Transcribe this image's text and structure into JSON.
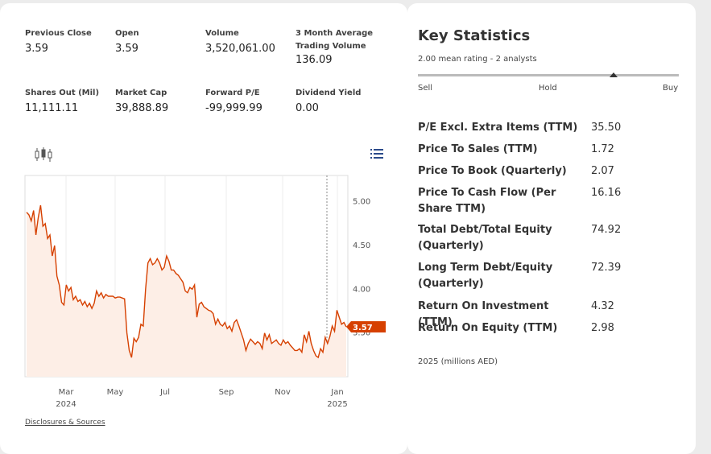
{
  "stats": [
    {
      "label": "Previous Close",
      "value": "3.59"
    },
    {
      "label": "Open",
      "value": "3.59"
    },
    {
      "label": "Volume",
      "value": "3,520,061.00"
    },
    {
      "label": "3 Month Average Trading Volume",
      "value": "136.09"
    },
    {
      "label": "Shares Out (Mil)",
      "value": "11,111.11"
    },
    {
      "label": "Market Cap",
      "value": "39,888.89"
    },
    {
      "label": "Forward P/E",
      "value": "-99,999.99"
    },
    {
      "label": "Dividend Yield",
      "value": "0.00"
    }
  ],
  "chart": {
    "last_price": "3.57",
    "y_ticks": [
      "5.00",
      "4.50",
      "4.00",
      "3.50"
    ],
    "x_ticks": [
      {
        "label": "Mar",
        "sub": "2024"
      },
      {
        "label": "May",
        "sub": ""
      },
      {
        "label": "Jul",
        "sub": ""
      },
      {
        "label": "Sep",
        "sub": ""
      },
      {
        "label": "Nov",
        "sub": ""
      },
      {
        "label": "Jan",
        "sub": "2025"
      }
    ],
    "line_color": "#d64000",
    "fill_color": "#fdeee6"
  },
  "chart_data": {
    "type": "area",
    "ylim": [
      3.0,
      5.3
    ],
    "y_ticks": [
      5.0,
      4.5,
      4.0,
      3.5
    ],
    "x_ticks": [
      "Mar 2024",
      "May",
      "Jul",
      "Sep",
      "Nov",
      "Jan 2025"
    ],
    "series": [
      {
        "values": [
          4.88,
          4.85,
          4.78,
          4.9,
          4.62,
          4.82,
          4.96,
          4.72,
          4.75,
          4.58,
          4.62,
          4.38,
          4.5,
          4.15,
          4.05,
          3.85,
          3.82,
          4.05,
          3.98,
          4.02,
          3.88,
          3.92,
          3.86,
          3.88,
          3.82,
          3.86,
          3.8,
          3.84,
          3.78,
          3.84,
          3.98,
          3.92,
          3.96,
          3.9,
          3.94,
          3.92,
          3.92,
          3.92,
          3.9,
          3.91,
          3.91,
          3.9,
          3.89,
          3.5,
          3.3,
          3.22,
          3.44,
          3.4,
          3.45,
          3.6,
          3.58,
          4.0,
          4.3,
          4.35,
          4.28,
          4.3,
          4.35,
          4.3,
          4.22,
          4.25,
          4.38,
          4.32,
          4.22,
          4.22,
          4.18,
          4.16,
          4.12,
          4.08,
          3.98,
          3.96,
          4.02,
          4.0,
          4.05,
          3.68,
          3.83,
          3.85,
          3.8,
          3.78,
          3.76,
          3.75,
          3.72,
          3.6,
          3.66,
          3.6,
          3.58,
          3.62,
          3.55,
          3.58,
          3.52,
          3.62,
          3.65,
          3.58,
          3.5,
          3.42,
          3.3,
          3.38,
          3.43,
          3.4,
          3.37,
          3.4,
          3.38,
          3.32,
          3.5,
          3.42,
          3.48,
          3.38,
          3.4,
          3.42,
          3.38,
          3.36,
          3.42,
          3.38,
          3.4,
          3.36,
          3.33,
          3.3,
          3.3,
          3.32,
          3.28,
          3.48,
          3.4,
          3.52,
          3.38,
          3.3,
          3.24,
          3.22,
          3.32,
          3.28,
          3.45,
          3.38,
          3.46,
          3.58,
          3.52,
          3.76,
          3.68,
          3.6,
          3.62,
          3.57
        ]
      }
    ]
  },
  "key_stats": {
    "title": "Key Statistics",
    "rating": "2.00 mean rating - 2 analysts",
    "rating_position": 0.75,
    "scale": [
      "Sell",
      "Hold",
      "Buy"
    ],
    "rows": [
      {
        "label": "P/E Excl. Extra Items (TTM)",
        "value": "35.50"
      },
      {
        "label": "Price To Sales (TTM)",
        "value": "1.72"
      },
      {
        "label": "Price To Book (Quarterly)",
        "value": "2.07"
      },
      {
        "label": "Price To Cash Flow (Per Share TTM)",
        "value": "16.16"
      },
      {
        "label": "Total Debt/Total Equity (Quarterly)",
        "value": "74.92"
      },
      {
        "label": "Long Term Debt/Equity (Quarterly)",
        "value": "72.39"
      },
      {
        "label": "Return On Investment (TTM)",
        "value": "4.32"
      },
      {
        "label": "Return On Equity (TTM)",
        "value": "2.98"
      }
    ],
    "note": "2025 (millions AED)"
  },
  "disclosures": "Disclosures & Sources",
  "icons": {
    "chart_type": "candlestick-icon",
    "menu": "list-icon"
  }
}
